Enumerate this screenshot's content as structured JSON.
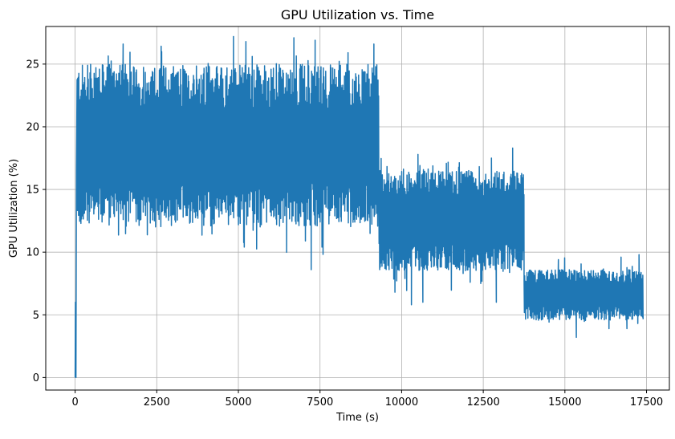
{
  "chart_data": {
    "type": "line",
    "title": "GPU Utilization vs. Time",
    "xlabel": "Time (s)",
    "ylabel": "GPU Utilization (%)",
    "xlim": [
      -900,
      18200
    ],
    "ylim": [
      -1.0,
      28.0
    ],
    "xticks": [
      0,
      2500,
      5000,
      7500,
      10000,
      12500,
      15000,
      17500
    ],
    "yticks": [
      0,
      5,
      10,
      15,
      20,
      25
    ],
    "grid": true,
    "series": [
      {
        "color": "#1f77b4",
        "segments": [
          {
            "x_start": 0,
            "x_end": 9300,
            "low": 12.0,
            "high": 25.0,
            "min": 8.6,
            "max": 27.2
          },
          {
            "x_start": 9300,
            "x_end": 13750,
            "low": 8.5,
            "high": 16.5,
            "min": 5.8,
            "max": 18.3
          },
          {
            "x_start": 13750,
            "x_end": 17400,
            "low": 4.6,
            "high": 8.6,
            "min": 3.2,
            "max": 9.8
          }
        ],
        "startup": [
          {
            "x": 0,
            "y": 0.0
          },
          {
            "x": 10,
            "y": 6.0
          },
          {
            "x": 25,
            "y": 0.0
          },
          {
            "x": 40,
            "y": 16.5
          }
        ],
        "extremes": [
          {
            "x": 1470,
            "y": 26.6
          },
          {
            "x": 2650,
            "y": 26.0
          },
          {
            "x": 4850,
            "y": 27.2
          },
          {
            "x": 5230,
            "y": 26.8
          },
          {
            "x": 6700,
            "y": 27.1
          },
          {
            "x": 7350,
            "y": 26.9
          },
          {
            "x": 9150,
            "y": 26.6
          },
          {
            "x": 7230,
            "y": 8.6
          },
          {
            "x": 7560,
            "y": 10.4
          },
          {
            "x": 5180,
            "y": 10.4
          },
          {
            "x": 10500,
            "y": 17.8
          },
          {
            "x": 12750,
            "y": 17.5
          },
          {
            "x": 13400,
            "y": 18.3
          },
          {
            "x": 10300,
            "y": 5.8
          },
          {
            "x": 10650,
            "y": 6.0
          },
          {
            "x": 12900,
            "y": 6.0
          },
          {
            "x": 14800,
            "y": 9.4
          },
          {
            "x": 16720,
            "y": 9.6
          },
          {
            "x": 17270,
            "y": 9.8
          },
          {
            "x": 15350,
            "y": 3.2
          },
          {
            "x": 16350,
            "y": 3.9
          },
          {
            "x": 16900,
            "y": 3.9
          }
        ]
      }
    ]
  }
}
